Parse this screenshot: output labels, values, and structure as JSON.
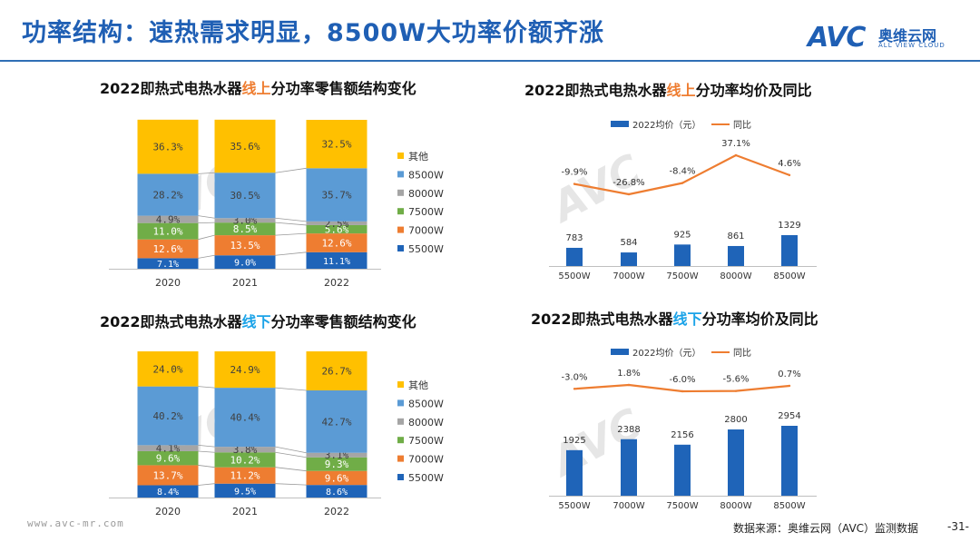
{
  "header": {
    "title": "功率结构：速热需求明显，8500W大功率价额齐涨",
    "logo_mark": "AVC",
    "logo_cn": "奥维云网",
    "logo_en": "ALL VIEW CLOUD"
  },
  "footer": {
    "url": "www.avc-mr.com",
    "source": "数据来源：奥维云网（AVC）监测数据",
    "page": "-31-"
  },
  "colors": {
    "5500W": "#1f64b8",
    "7000W": "#ee7d31",
    "7500W": "#70ad47",
    "8000W": "#a5a5a5",
    "8500W": "#5b9bd5",
    "其他": "#ffc000",
    "price_bar": "#1f64b8",
    "yoy_line": "#ee7d31",
    "accent": "#1f5fb4"
  },
  "chart_titles": {
    "online_structure": {
      "pre": "2022即热式电热水器",
      "hl": "线上",
      "post": "分功率零售额结构变化"
    },
    "online_price": {
      "pre": "2022即热式电热水器",
      "hl": "线上",
      "post": "分功率均价及同比"
    },
    "offline_structure": {
      "pre": "2022即热式电热水器",
      "hl": "线下",
      "post": "分功率零售额结构变化"
    },
    "offline_price": {
      "pre": "2022即热式电热水器",
      "hl": "线下",
      "post": "分功率均价及同比"
    }
  },
  "chart_data": [
    {
      "id": "online_structure",
      "type": "bar",
      "stacked": "percent",
      "title": "2022即热式电热水器线上分功率零售额结构变化",
      "categories": [
        "2020",
        "2021",
        "2022"
      ],
      "series": [
        {
          "name": "5500W",
          "values": [
            7.1,
            9.0,
            11.1
          ],
          "labels": [
            "7.1%",
            "9.0%",
            "11.1%"
          ]
        },
        {
          "name": "7000W",
          "values": [
            12.6,
            13.5,
            12.6
          ],
          "labels": [
            "12.6%",
            "13.5%",
            "12.6%"
          ]
        },
        {
          "name": "7500W",
          "values": [
            11.0,
            8.5,
            5.6
          ],
          "labels": [
            "11.0%",
            "8.5%",
            "5.6%"
          ]
        },
        {
          "name": "8000W",
          "values": [
            4.9,
            3.0,
            2.5
          ],
          "labels": [
            "4.9%",
            "3.0%",
            "2.5%"
          ]
        },
        {
          "name": "8500W",
          "values": [
            28.2,
            30.5,
            35.7
          ],
          "labels": [
            "28.2%",
            "30.5%",
            "35.7%"
          ]
        },
        {
          "name": "其他",
          "values": [
            36.3,
            35.6,
            32.5
          ],
          "labels": [
            "36.3%",
            "35.6%",
            "32.5%"
          ]
        }
      ],
      "legend": [
        "其他",
        "8500W",
        "8000W",
        "7500W",
        "7000W",
        "5500W"
      ],
      "ylim": [
        0,
        100
      ]
    },
    {
      "id": "online_price",
      "type": "bar+line",
      "title": "2022即热式电热水器线上分功率均价及同比",
      "categories": [
        "5500W",
        "7000W",
        "7500W",
        "8000W",
        "8500W"
      ],
      "series": [
        {
          "name": "2022均价（元）",
          "type": "bar",
          "values": [
            783,
            584,
            925,
            861,
            1329
          ],
          "labels": [
            "783",
            "584",
            "925",
            "861",
            "1329"
          ]
        },
        {
          "name": "同比",
          "type": "line",
          "values": [
            -9.9,
            -26.8,
            -8.4,
            37.1,
            4.6
          ],
          "labels": [
            "-9.9%",
            "-26.8%",
            "-8.4%",
            "37.1%",
            "4.6%"
          ]
        }
      ]
    },
    {
      "id": "offline_structure",
      "type": "bar",
      "stacked": "percent",
      "title": "2022即热式电热水器线下分功率零售额结构变化",
      "categories": [
        "2020",
        "2021",
        "2022"
      ],
      "series": [
        {
          "name": "5500W",
          "values": [
            8.4,
            9.5,
            8.6
          ],
          "labels": [
            "8.4%",
            "9.5%",
            "8.6%"
          ]
        },
        {
          "name": "7000W",
          "values": [
            13.7,
            11.2,
            9.6
          ],
          "labels": [
            "13.7%",
            "11.2%",
            "9.6%"
          ]
        },
        {
          "name": "7500W",
          "values": [
            9.6,
            10.2,
            9.3
          ],
          "labels": [
            "9.6%",
            "10.2%",
            "9.3%"
          ]
        },
        {
          "name": "8000W",
          "values": [
            4.1,
            3.8,
            3.1
          ],
          "labels": [
            "4.1%",
            "3.8%",
            "3.1%"
          ]
        },
        {
          "name": "8500W",
          "values": [
            40.2,
            40.4,
            42.7
          ],
          "labels": [
            "40.2%",
            "40.4%",
            "42.7%"
          ]
        },
        {
          "name": "其他",
          "values": [
            24.0,
            24.9,
            26.7
          ],
          "labels": [
            "24.0%",
            "24.9%",
            "26.7%"
          ]
        }
      ],
      "legend": [
        "其他",
        "8500W",
        "8000W",
        "7500W",
        "7000W",
        "5500W"
      ],
      "ylim": [
        0,
        100
      ]
    },
    {
      "id": "offline_price",
      "type": "bar+line",
      "title": "2022即热式电热水器线下分功率均价及同比",
      "categories": [
        "5500W",
        "7000W",
        "7500W",
        "8000W",
        "8500W"
      ],
      "series": [
        {
          "name": "2022均价（元）",
          "type": "bar",
          "values": [
            1925,
            2388,
            2156,
            2800,
            2954
          ],
          "labels": [
            "1925",
            "2388",
            "2156",
            "2800",
            "2954"
          ]
        },
        {
          "name": "同比",
          "type": "line",
          "values": [
            -3.0,
            1.8,
            -6.0,
            -5.6,
            0.7
          ],
          "labels": [
            "-3.0%",
            "1.8%",
            "-6.0%",
            "-5.6%",
            "0.7%"
          ]
        }
      ]
    }
  ]
}
